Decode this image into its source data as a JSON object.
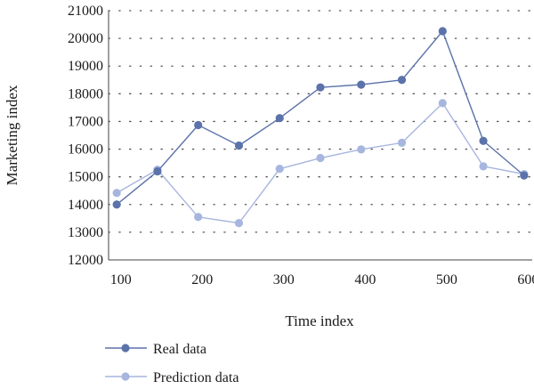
{
  "chart_data": {
    "type": "line",
    "xlabel": "Time index",
    "ylabel": "Marketing index",
    "xlim": [
      85,
      605
    ],
    "ylim": [
      12000,
      21000
    ],
    "xticks": [
      100,
      200,
      300,
      400,
      500,
      600
    ],
    "yticks": [
      12000,
      13000,
      14000,
      15000,
      16000,
      17000,
      18000,
      19000,
      20000,
      21000
    ],
    "grid": "dotted horizontal",
    "legend_position": "bottom-left",
    "x": [
      95,
      145,
      195,
      245,
      295,
      345,
      395,
      445,
      495,
      545,
      595
    ],
    "series": [
      {
        "name": "Real data",
        "color": "#5b72aa",
        "values": [
          14000,
          15200,
          16870,
          16130,
          17120,
          18230,
          18330,
          18500,
          20260,
          16300,
          15050
        ]
      },
      {
        "name": "Prediction data",
        "color": "#a7b6de",
        "values": [
          14420,
          15260,
          13550,
          13330,
          15290,
          15680,
          15990,
          16230,
          17660,
          15380,
          15100
        ]
      }
    ]
  }
}
